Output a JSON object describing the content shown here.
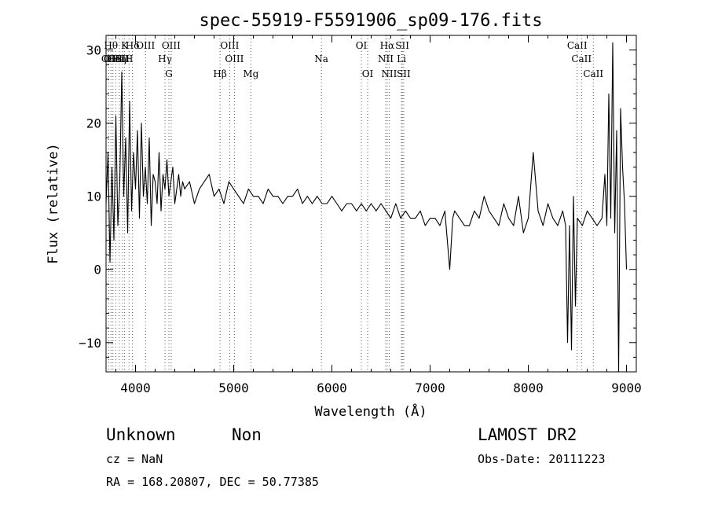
{
  "chart_data": {
    "type": "line",
    "title": "spec-55919-F5591906_sp09-176.fits",
    "xlabel": "Wavelength (Å)",
    "ylabel": "Flux (relative)",
    "xlim": [
      3700,
      9100
    ],
    "ylim": [
      -14,
      32
    ],
    "x_ticks": [
      4000,
      5000,
      6000,
      7000,
      8000,
      9000
    ],
    "y_ticks": [
      -10,
      0,
      10,
      20,
      30
    ],
    "series": [
      {
        "x": [
          3700,
          3720,
          3740,
          3760,
          3780,
          3800,
          3820,
          3840,
          3860,
          3880,
          3900,
          3920,
          3940,
          3960,
          3980,
          4000,
          4020,
          4040,
          4060,
          4080,
          4100,
          4120,
          4140,
          4160,
          4180,
          4200,
          4220,
          4240,
          4260,
          4280,
          4300,
          4320,
          4340,
          4360,
          4380,
          4400,
          4420,
          4440,
          4460,
          4480,
          4500,
          4550,
          4600,
          4650,
          4700,
          4750,
          4800,
          4850,
          4900,
          4950,
          5000,
          5050,
          5100,
          5150,
          5200,
          5250,
          5300,
          5350,
          5400,
          5450,
          5500,
          5550,
          5600,
          5650,
          5700,
          5750,
          5800,
          5850,
          5900,
          5950,
          6000,
          6050,
          6100,
          6150,
          6200,
          6250,
          6300,
          6350,
          6400,
          6450,
          6500,
          6550,
          6600,
          6650,
          6700,
          6750,
          6800,
          6850,
          6900,
          6950,
          7000,
          7050,
          7100,
          7150,
          7200,
          7230,
          7250,
          7300,
          7350,
          7400,
          7450,
          7500,
          7550,
          7600,
          7650,
          7700,
          7750,
          7800,
          7850,
          7900,
          7950,
          8000,
          8050,
          8100,
          8150,
          8200,
          8250,
          8300,
          8350,
          8380,
          8400,
          8420,
          8440,
          8460,
          8480,
          8500,
          8550,
          8600,
          8650,
          8700,
          8750,
          8780,
          8800,
          8820,
          8840,
          8860,
          8880,
          8900,
          8920,
          8940,
          8960,
          8980,
          9000
        ],
        "y": [
          9,
          16,
          1,
          14,
          4,
          21,
          6,
          12,
          27,
          10,
          18,
          5,
          23,
          8,
          16,
          11,
          19,
          7,
          20,
          10,
          14,
          9,
          18,
          6,
          13,
          12,
          9,
          16,
          8,
          13,
          11,
          15,
          10,
          12,
          14,
          9,
          11,
          13,
          10,
          12,
          11,
          12,
          9,
          11,
          12,
          13,
          10,
          11,
          9,
          12,
          11,
          10,
          9,
          11,
          10,
          10,
          9,
          11,
          10,
          10,
          9,
          10,
          10,
          11,
          9,
          10,
          9,
          10,
          9,
          9,
          10,
          9,
          8,
          9,
          9,
          8,
          9,
          8,
          9,
          8,
          9,
          8,
          7,
          9,
          7,
          8,
          7,
          7,
          8,
          6,
          7,
          7,
          6,
          8,
          0,
          7,
          8,
          7,
          6,
          6,
          8,
          7,
          10,
          8,
          7,
          6,
          9,
          7,
          6,
          10,
          5,
          7,
          16,
          8,
          6,
          9,
          7,
          6,
          8,
          6,
          -10,
          6,
          -11,
          10,
          -5,
          7,
          6,
          8,
          7,
          6,
          7,
          13,
          6,
          24,
          7,
          31,
          5,
          19,
          -14,
          22,
          14,
          9,
          0
        ]
      }
    ],
    "line_labels": [
      {
        "x": 3728,
        "label": "OII",
        "row": 2
      },
      {
        "x": 3750,
        "label": "Hθ",
        "row": 1
      },
      {
        "x": 3770,
        "label": "OIII",
        "row": 2
      },
      {
        "x": 3798,
        "label": "HeI",
        "row": 2
      },
      {
        "x": 3835,
        "label": "Hη",
        "row": 2
      },
      {
        "x": 3869,
        "label": "SII",
        "row": 2
      },
      {
        "x": 3889,
        "label": "K",
        "row": 1
      },
      {
        "x": 3934,
        "label": "H",
        "row": 2
      },
      {
        "x": 3969,
        "label": "Hδ",
        "row": 1
      },
      {
        "x": 4102,
        "label": "OIII",
        "row": 1
      },
      {
        "x": 4300,
        "label": "Hγ",
        "row": 2
      },
      {
        "x": 4340,
        "label": "G",
        "row": 3
      },
      {
        "x": 4363,
        "label": "OIII",
        "row": 1
      },
      {
        "x": 4861,
        "label": "Hβ",
        "row": 3
      },
      {
        "x": 4959,
        "label": "OIII",
        "row": 1
      },
      {
        "x": 5007,
        "label": "OIII",
        "row": 2
      },
      {
        "x": 5175,
        "label": "Mg",
        "row": 3
      },
      {
        "x": 5893,
        "label": "Na",
        "row": 2
      },
      {
        "x": 6300,
        "label": "OI",
        "row": 1
      },
      {
        "x": 6364,
        "label": "OI",
        "row": 3
      },
      {
        "x": 6548,
        "label": "NII",
        "row": 2
      },
      {
        "x": 6563,
        "label": "Hα",
        "row": 1
      },
      {
        "x": 6583,
        "label": "NII",
        "row": 3
      },
      {
        "x": 6708,
        "label": "Li",
        "row": 2
      },
      {
        "x": 6717,
        "label": "SII",
        "row": 1
      },
      {
        "x": 6731,
        "label": "SII",
        "row": 3
      },
      {
        "x": 8498,
        "label": "CaII",
        "row": 1
      },
      {
        "x": 8542,
        "label": "CaII",
        "row": 2
      },
      {
        "x": 8662,
        "label": "CaII",
        "row": 3
      }
    ]
  },
  "footer": {
    "classification": "Unknown",
    "subclass": "Non",
    "survey": "LAMOST DR2",
    "cz": "cz = NaN",
    "obs_date": "Obs-Date: 20111223",
    "coords": "RA = 168.20807, DEC =  50.77385"
  }
}
